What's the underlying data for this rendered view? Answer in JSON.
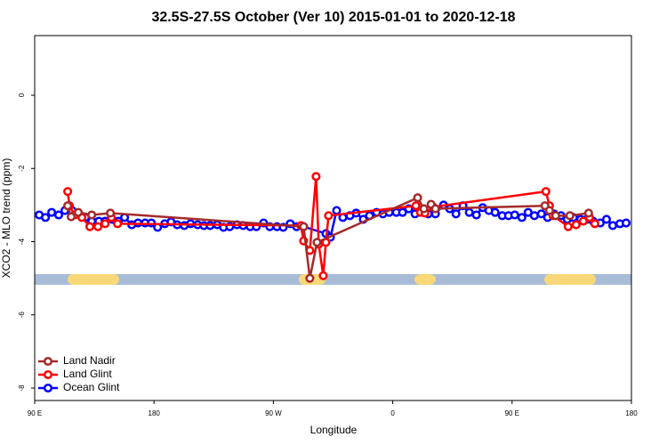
{
  "chart_data": {
    "type": "line",
    "title": "32.5S-27.5S October (Ver 10)   2015-01-01 to 2020-12-18",
    "x_label": "Longitude",
    "y_label": "XCO2 - MLO trend (ppm)",
    "xlim": [
      90,
      540
    ],
    "ylim": [
      -8.34,
      1.63
    ],
    "xticks": [
      {
        "value": 90,
        "label": "90 E"
      },
      180,
      {
        "value": 270,
        "label": "90 W"
      },
      {
        "value": 360,
        "label": "0"
      },
      {
        "value": 450,
        "label": "90 E"
      },
      {
        "value": 540,
        "label": "180"
      }
    ],
    "yticks": [
      0,
      -2,
      -4,
      -6,
      -8
    ],
    "legend": "bottomleft",
    "series": [
      {
        "name": "Land Nadir",
        "color": "#a52a2a",
        "x": [
          114.9,
          117.5,
          122.9,
          133.0,
          147.1,
          292.8,
          297.5,
          302.9,
          378.8,
          383.5,
          388.9,
          392.2,
          474.8,
          478.2,
          482.9,
          493.6,
          507.7
        ],
        "values": [
          -3.02,
          -3.32,
          -3.2,
          -3.27,
          -3.22,
          -3.59,
          -5.0,
          -4.02,
          -2.8,
          -3.1,
          -2.98,
          -3.1,
          -3.02,
          -3.15,
          -3.29,
          -3.29,
          -3.22
        ]
      },
      {
        "name": "Land Glint",
        "color": "#ff0000",
        "x": [
          114.9,
          116.2,
          120.2,
          125.6,
          131.6,
          137.7,
          143.1,
          147.8,
          152.5,
          290.8,
          292.8,
          297.5,
          302.2,
          304.2,
          307.6,
          309.6,
          311.6,
          377.5,
          380.9,
          384.3,
          390.4,
          475.5,
          478.2,
          480.9,
          492.3,
          498.3,
          503.7,
          508.4,
          512.4
        ],
        "values": [
          -2.63,
          -3.02,
          -3.27,
          -3.34,
          -3.59,
          -3.59,
          -3.51,
          -3.34,
          -3.51,
          -3.56,
          -3.98,
          -4.24,
          -2.22,
          -4.07,
          -4.93,
          -4.02,
          -3.29,
          -3.02,
          -3.2,
          -3.22,
          -3.05,
          -2.63,
          -3.02,
          -3.29,
          -3.59,
          -3.54,
          -3.44,
          -3.34,
          -3.51
        ]
      },
      {
        "name": "Ocean Glint",
        "color": "#0000ff",
        "x": [
          93.4,
          98.1,
          102.8,
          108.1,
          112.8,
          118.2,
          122.9,
          128.3,
          133.0,
          138.4,
          143.1,
          148.4,
          153.1,
          157.8,
          163.2,
          167.9,
          173.3,
          178.0,
          182.7,
          188.1,
          192.8,
          197.5,
          202.8,
          207.5,
          212.9,
          217.6,
          222.3,
          227.7,
          232.4,
          237.1,
          242.5,
          247.2,
          252.5,
          257.2,
          262.6,
          267.3,
          272.7,
          277.4,
          282.7,
          287.5,
          292.8,
          309.6,
          313.0,
          317.7,
          322.4,
          327.7,
          332.4,
          337.8,
          342.5,
          347.9,
          352.6,
          357.3,
          362.7,
          367.4,
          372.1,
          376.8,
          382.1,
          386.8,
          392.2,
          398.3,
          403.0,
          407.7,
          413.0,
          417.7,
          423.1,
          427.8,
          432.5,
          437.2,
          442.6,
          447.3,
          452.0,
          457.4,
          462.1,
          466.8,
          472.1,
          476.8,
          481.6,
          486.9,
          491.6,
          496.3,
          501.7,
          506.4,
          511.1,
          516.5,
          521.2,
          525.9,
          531.3,
          536.0
        ],
        "values": [
          -3.27,
          -3.34,
          -3.2,
          -3.27,
          -3.15,
          -3.15,
          -3.24,
          -3.34,
          -3.44,
          -3.44,
          -3.44,
          -3.39,
          -3.44,
          -3.34,
          -3.54,
          -3.49,
          -3.49,
          -3.49,
          -3.61,
          -3.51,
          -3.46,
          -3.54,
          -3.56,
          -3.51,
          -3.54,
          -3.56,
          -3.56,
          -3.54,
          -3.61,
          -3.59,
          -3.54,
          -3.56,
          -3.59,
          -3.59,
          -3.49,
          -3.59,
          -3.59,
          -3.61,
          -3.51,
          -3.59,
          -3.59,
          -3.78,
          -3.88,
          -3.15,
          -3.34,
          -3.29,
          -3.22,
          -3.39,
          -3.29,
          -3.2,
          -3.24,
          -3.2,
          -3.2,
          -3.2,
          -3.1,
          -3.24,
          -3.15,
          -3.24,
          -3.24,
          -3.0,
          -3.1,
          -3.24,
          -3.02,
          -3.2,
          -3.27,
          -3.07,
          -3.15,
          -3.2,
          -3.29,
          -3.29,
          -3.27,
          -3.34,
          -3.2,
          -3.29,
          -3.24,
          -3.34,
          -3.24,
          -3.29,
          -3.39,
          -3.34,
          -3.39,
          -3.39,
          -3.44,
          -3.49,
          -3.39,
          -3.56,
          -3.51,
          -3.49
        ]
      }
    ]
  }
}
